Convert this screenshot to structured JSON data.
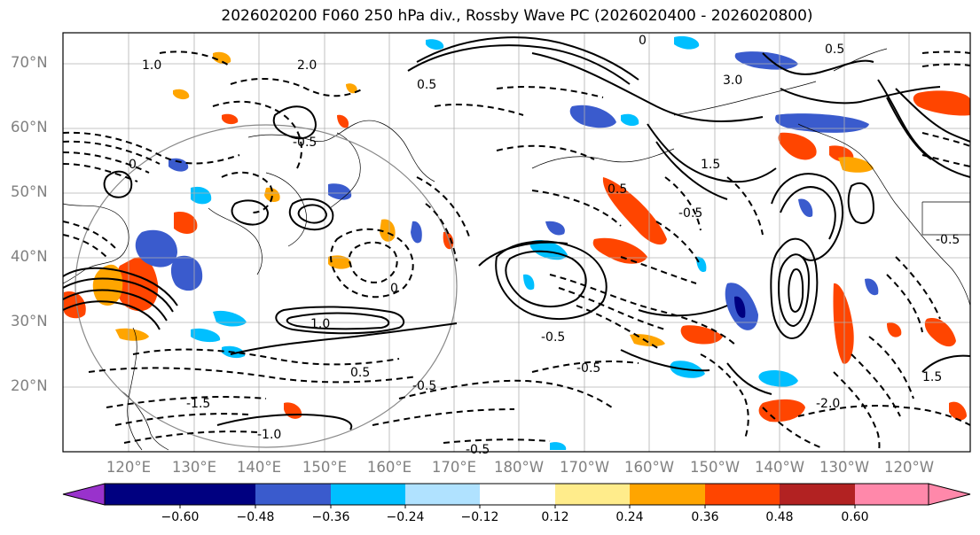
{
  "title": "2026020200 F060 250 hPa div., Rossby Wave PC (2026020400 - 2026020800)",
  "lat_labels": [
    "70°N",
    "60°N",
    "50°N",
    "40°N",
    "30°N",
    "20°N"
  ],
  "lon_labels": [
    "120°E",
    "130°E",
    "140°E",
    "150°E",
    "160°E",
    "170°E",
    "180°W",
    "170°W",
    "160°W",
    "150°W",
    "140°W",
    "130°W",
    "120°W"
  ],
  "colorbar": {
    "colors": [
      "#9932cc",
      "#000080",
      "#3a5bcd",
      "#00bfff",
      "#b0e2ff",
      "#ffffff",
      "#ffec8b",
      "#ffa500",
      "#ff4500",
      "#b22222",
      "#ff88aa"
    ],
    "tick_labels": [
      "−0.60",
      "−0.48",
      "−0.36",
      "−0.24",
      "−0.12",
      "0.12",
      "0.24",
      "0.36",
      "0.48",
      "0.60"
    ]
  },
  "contour_labels": [
    "-0.5",
    "-0.5",
    "-0.5",
    "-0.5",
    "-0.5",
    "-0.5",
    "-0.5",
    "-1.0",
    "-1.5",
    "-2.0",
    "0.5",
    "0.5",
    "0.5",
    "0.5",
    "1.0",
    "1.0",
    "1.5",
    "1.5",
    "2.0",
    "3.0",
    "0",
    "0",
    "0"
  ]
}
